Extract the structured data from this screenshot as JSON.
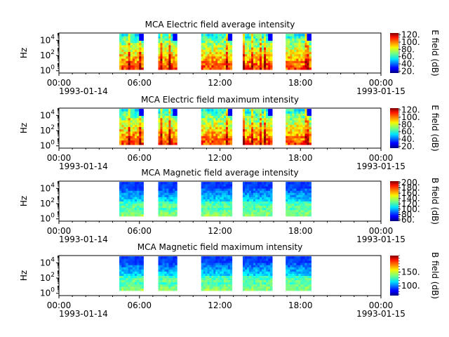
{
  "chart_data": [
    {
      "type": "heatmap",
      "title": "MCA  Electric field average intensity",
      "ylabel": "Hz",
      "y_scale": "log",
      "y_ticks": [
        {
          "exp": "0"
        },
        {
          "exp": "2"
        },
        {
          "exp": "4"
        }
      ],
      "x_ticks": [
        "00:00",
        "06:00",
        "12:00",
        "18:00",
        "00:00"
      ],
      "x_date_start": "1993-01-14",
      "x_date_end": "1993-01-15",
      "xlim_hours": [
        0,
        24
      ],
      "colorbar": {
        "label": "E field (dB)",
        "range": [
          15,
          125
        ],
        "ticks": [
          20,
          40,
          60,
          80,
          100,
          120
        ],
        "tick_labels": [
          "20.",
          "40.",
          "60.",
          "80.",
          "100.",
          "120."
        ],
        "scheme": "jet"
      },
      "segments": [
        {
          "start": 4.5,
          "end": 6.3,
          "level": "high"
        },
        {
          "start": 7.4,
          "end": 8.8,
          "level": "high"
        },
        {
          "start": 10.6,
          "end": 12.9,
          "level": "high"
        },
        {
          "start": 13.7,
          "end": 15.9,
          "level": "high"
        },
        {
          "start": 16.9,
          "end": 18.8,
          "level": "high"
        }
      ]
    },
    {
      "type": "heatmap",
      "title": "MCA  Electric field maximum intensity",
      "ylabel": "Hz",
      "y_scale": "log",
      "y_ticks": [
        {
          "exp": "0"
        },
        {
          "exp": "2"
        },
        {
          "exp": "4"
        }
      ],
      "x_ticks": [
        "00:00",
        "06:00",
        "12:00",
        "18:00",
        "00:00"
      ],
      "x_date_start": "1993-01-14",
      "x_date_end": "1993-01-15",
      "xlim_hours": [
        0,
        24
      ],
      "colorbar": {
        "label": "E field (dB)",
        "range": [
          15,
          125
        ],
        "ticks": [
          20,
          40,
          60,
          80,
          100,
          120
        ],
        "tick_labels": [
          "20.",
          "40.",
          "60.",
          "80.",
          "100.",
          "120."
        ],
        "scheme": "jet"
      },
      "segments": [
        {
          "start": 4.5,
          "end": 6.3,
          "level": "high"
        },
        {
          "start": 7.4,
          "end": 8.8,
          "level": "high"
        },
        {
          "start": 10.6,
          "end": 12.9,
          "level": "high"
        },
        {
          "start": 13.7,
          "end": 15.9,
          "level": "high"
        },
        {
          "start": 16.9,
          "end": 18.8,
          "level": "high"
        }
      ]
    },
    {
      "type": "heatmap",
      "title": "MCA  Magnetic field average intensity",
      "ylabel": "Hz",
      "y_scale": "log",
      "y_ticks": [
        {
          "exp": "0"
        },
        {
          "exp": "2"
        },
        {
          "exp": "4"
        }
      ],
      "x_ticks": [
        "00:00",
        "06:00",
        "12:00",
        "18:00",
        "00:00"
      ],
      "x_date_start": "1993-01-14",
      "x_date_end": "1993-01-15",
      "xlim_hours": [
        0,
        24
      ],
      "colorbar": {
        "label": "B field (dB)",
        "range": [
          55,
          205
        ],
        "ticks": [
          60,
          80,
          100,
          120,
          140,
          160,
          180,
          200
        ],
        "tick_labels": [
          "60.",
          "80.",
          "100.",
          "120.",
          "140.",
          "160.",
          "180.",
          "200."
        ],
        "scheme": "jet"
      },
      "segments": [
        {
          "start": 4.5,
          "end": 6.3,
          "level": "mid"
        },
        {
          "start": 7.4,
          "end": 8.8,
          "level": "mid"
        },
        {
          "start": 10.6,
          "end": 12.9,
          "level": "mid"
        },
        {
          "start": 13.7,
          "end": 15.9,
          "level": "mid"
        },
        {
          "start": 16.9,
          "end": 18.8,
          "level": "mid"
        }
      ]
    },
    {
      "type": "heatmap",
      "title": "MCA  Magnetic field maximum intensity",
      "ylabel": "Hz",
      "y_scale": "log",
      "y_ticks": [
        {
          "exp": "0"
        },
        {
          "exp": "2"
        },
        {
          "exp": "4"
        }
      ],
      "x_ticks": [
        "00:00",
        "06:00",
        "12:00",
        "18:00",
        "00:00"
      ],
      "x_date_start": "1993-01-14",
      "x_date_end": "1993-01-15",
      "xlim_hours": [
        0,
        24
      ],
      "colorbar": {
        "label": "B field (dB)",
        "range": [
          65,
          210
        ],
        "ticks": [
          100,
          150
        ],
        "tick_labels": [
          "100.",
          "150."
        ],
        "scheme": "jet"
      },
      "segments": [
        {
          "start": 4.5,
          "end": 6.3,
          "level": "mid"
        },
        {
          "start": 7.4,
          "end": 8.8,
          "level": "mid"
        },
        {
          "start": 10.6,
          "end": 12.9,
          "level": "mid"
        },
        {
          "start": 13.7,
          "end": 15.9,
          "level": "mid"
        },
        {
          "start": 16.9,
          "end": 18.8,
          "level": "mid"
        }
      ]
    }
  ]
}
